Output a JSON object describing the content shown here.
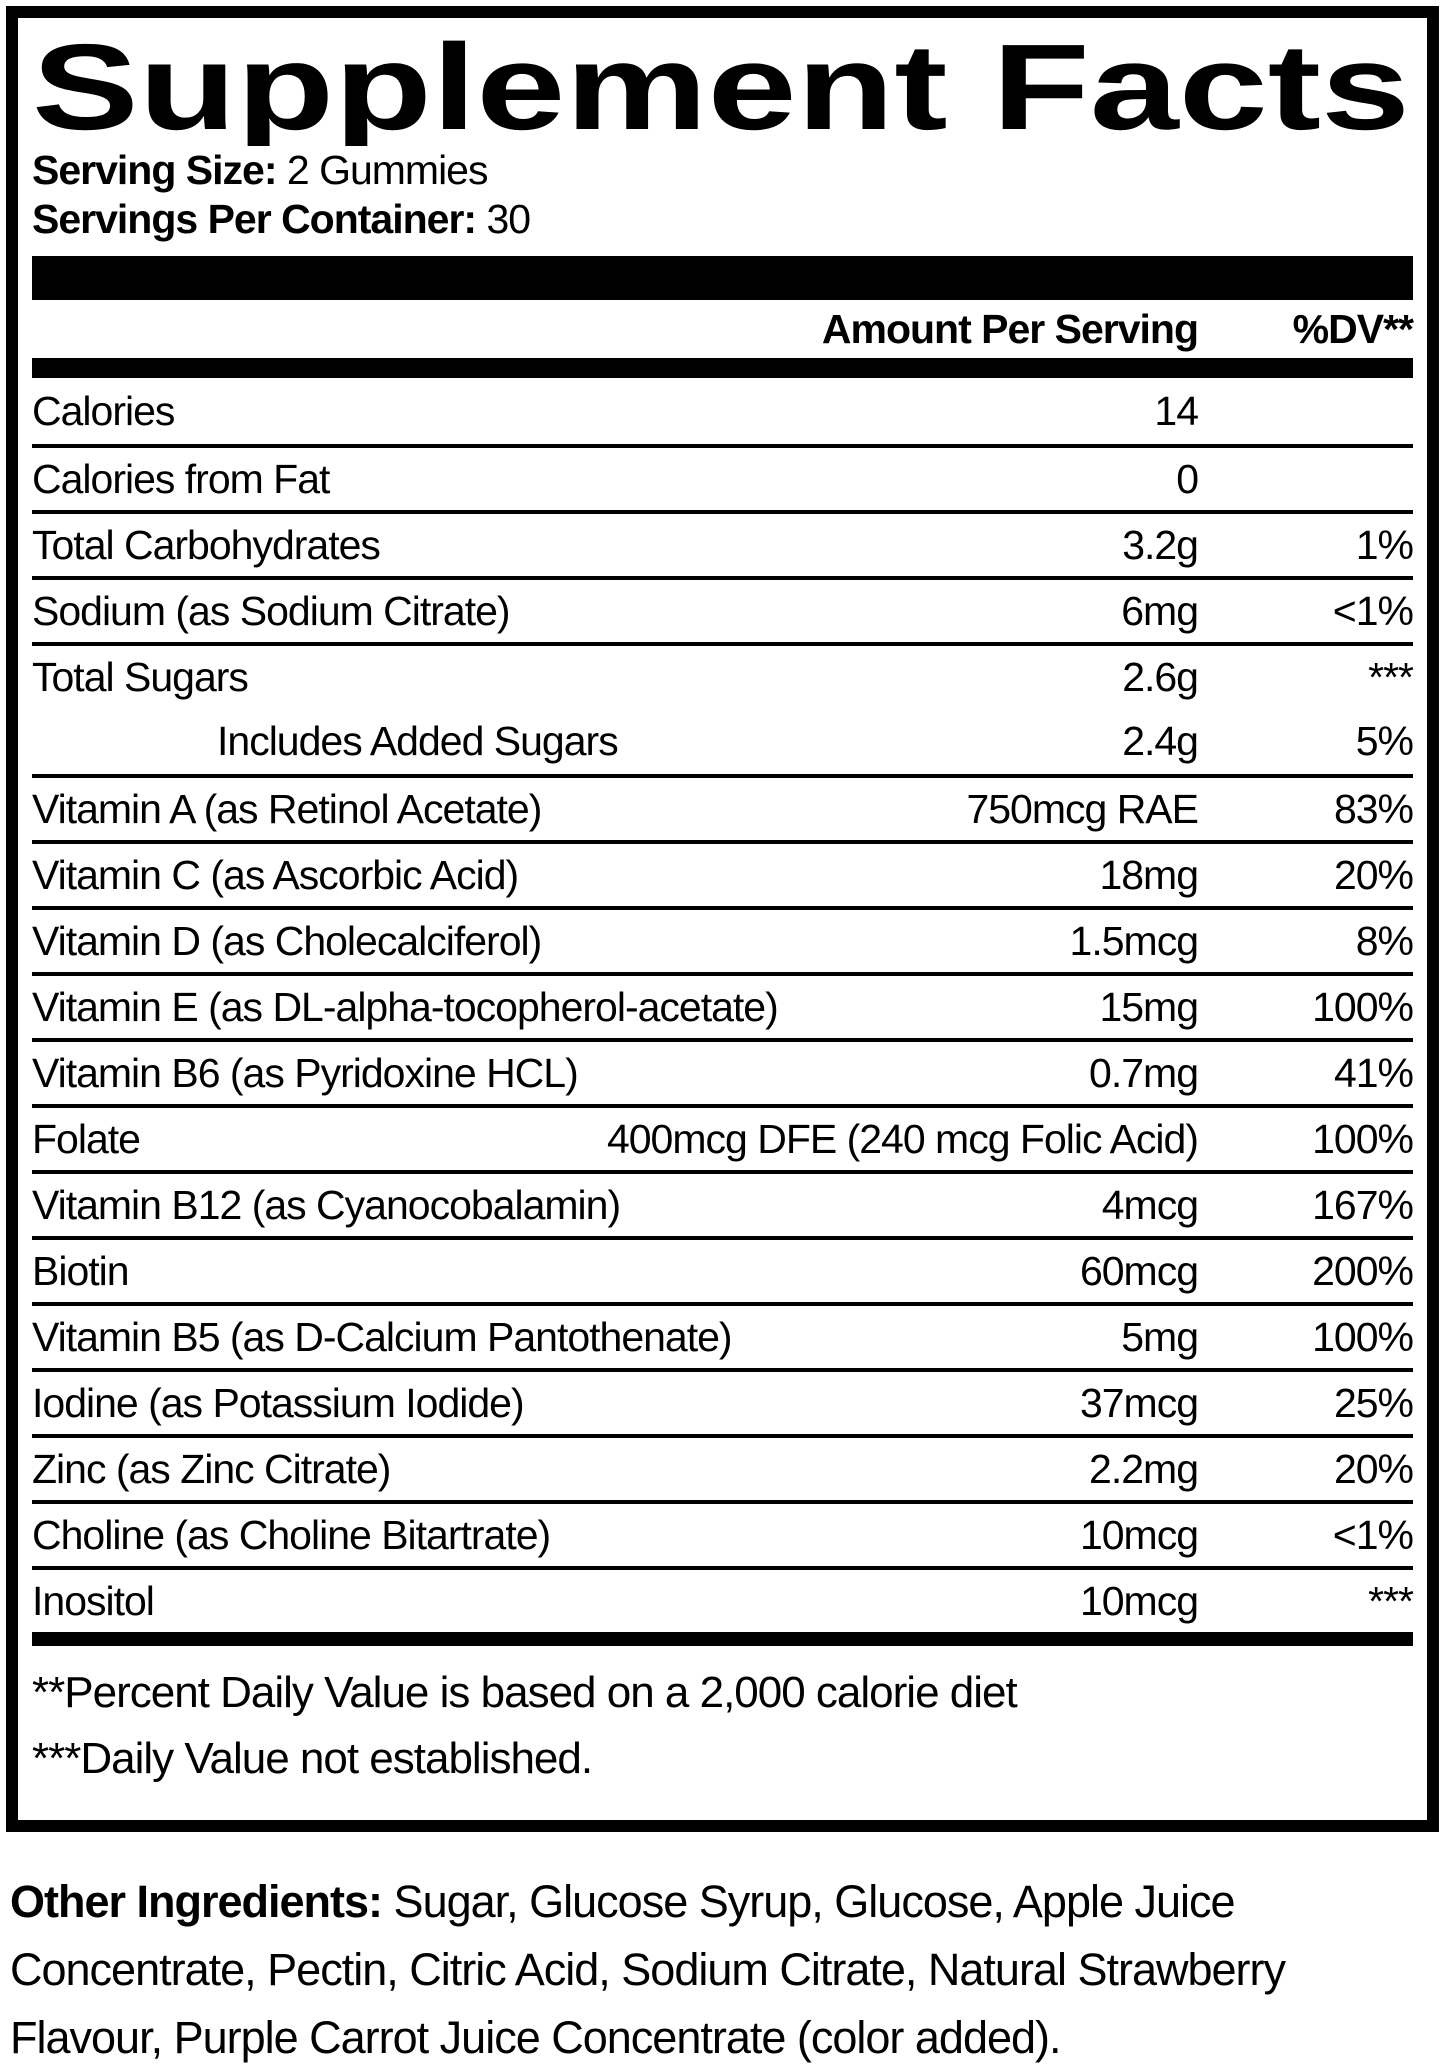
{
  "colors": {
    "text": "#000000",
    "background": "#ffffff"
  },
  "label": {
    "title": "Supplement Facts",
    "serving_size_label": "Serving Size:",
    "serving_size_value": " 2 Gummies",
    "servings_per_container_label": "Servings Per Container:",
    "servings_per_container_value": " 30"
  },
  "table": {
    "header": {
      "amount": "Amount Per Serving",
      "dv": "%DV**"
    },
    "rows": [
      {
        "name": "Calories",
        "amount": "14",
        "dv": ""
      },
      {
        "name": "Calories from Fat",
        "amount": "0",
        "dv": ""
      },
      {
        "name": "Total Carbohydrates",
        "amount": "3.2g",
        "dv": "1%"
      },
      {
        "name": "Sodium (as Sodium Citrate)",
        "amount": "6mg",
        "dv": "<1%"
      },
      {
        "name": "Total Sugars",
        "amount": "2.6g",
        "dv": "***"
      },
      {
        "name": "Includes Added Sugars",
        "amount": "2.4g",
        "dv": "5%"
      },
      {
        "name": "Vitamin A (as Retinol Acetate)",
        "amount": "750mcg RAE",
        "dv": "83%"
      },
      {
        "name": "Vitamin C (as Ascorbic Acid)",
        "amount": "18mg",
        "dv": "20%"
      },
      {
        "name": "Vitamin D (as Cholecalciferol)",
        "amount": "1.5mcg",
        "dv": "8%"
      },
      {
        "name": "Vitamin E (as DL-alpha-tocopherol-acetate)",
        "amount": "15mg",
        "dv": "100%"
      },
      {
        "name": "Vitamin B6 (as Pyridoxine HCL)",
        "amount": "0.7mg",
        "dv": "41%"
      },
      {
        "name": "Folate",
        "amount": "400mcg DFE (240 mcg Folic Acid)",
        "dv": "100%"
      },
      {
        "name": "Vitamin B12 (as Cyanocobalamin)",
        "amount": "4mcg",
        "dv": "167%"
      },
      {
        "name": "Biotin",
        "amount": "60mcg",
        "dv": "200%"
      },
      {
        "name": "Vitamin B5 (as D-Calcium Pantothenate)",
        "amount": "5mg",
        "dv": "100%"
      },
      {
        "name": "Iodine (as Potassium Iodide)",
        "amount": "37mcg",
        "dv": "25%"
      },
      {
        "name": "Zinc (as Zinc Citrate)",
        "amount": "2.2mg",
        "dv": "20%"
      },
      {
        "name": "Choline (as Choline Bitartrate)",
        "amount": "10mcg",
        "dv": "<1%"
      },
      {
        "name": "Inositol",
        "amount": "10mcg",
        "dv": "***"
      }
    ]
  },
  "footnotes": {
    "line1": "**Percent Daily Value is based on a 2,000 calorie diet",
    "line2": "***Daily Value not established."
  },
  "other_ingredients": {
    "label": "Other Ingredients:",
    "text": " Sugar, Glucose Syrup, Glucose, Apple Juice Concentrate, Pectin, Citric Acid, Sodium Citrate, Natural Strawberry Flavour, Purple Carrot Juice Concentrate (color added)."
  }
}
